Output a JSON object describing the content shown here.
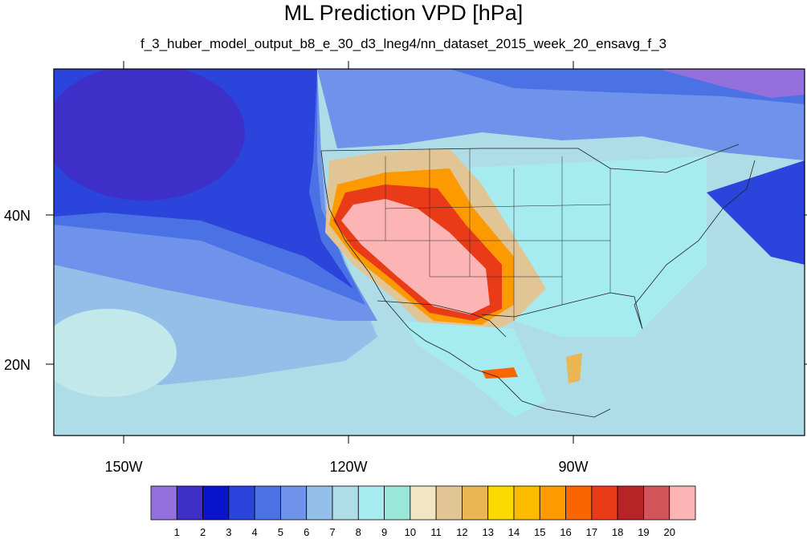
{
  "title": "ML Prediction VPD [hPa]",
  "subtitle": "f_3_huber_model_output_b8_e_30_d3_lneg4/nn_dataset_2015_week_20_ensavg_f_3",
  "lon_labels": [
    "150W",
    "120W",
    "90W"
  ],
  "lat_labels": [
    "40N",
    "20N"
  ],
  "colorbar": {
    "labels": [
      "1",
      "2",
      "3",
      "4",
      "5",
      "6",
      "7",
      "8",
      "9",
      "10",
      "11",
      "12",
      "13",
      "14",
      "15",
      "16",
      "17",
      "18",
      "19",
      "20"
    ],
    "colors": [
      "#9370db",
      "#3e2fc9",
      "#0a14cc",
      "#2a44dc",
      "#4b72e4",
      "#6f93ea",
      "#94bfe9",
      "#aedde7",
      "#a5ebf0",
      "#98e7d9",
      "#f3e4c4",
      "#e2c595",
      "#e9b653",
      "#fcd900",
      "#fdbb00",
      "#fc9a00",
      "#fb6500",
      "#e93b17",
      "#b82325",
      "#d0545a",
      "#fdb4b4"
    ]
  }
}
